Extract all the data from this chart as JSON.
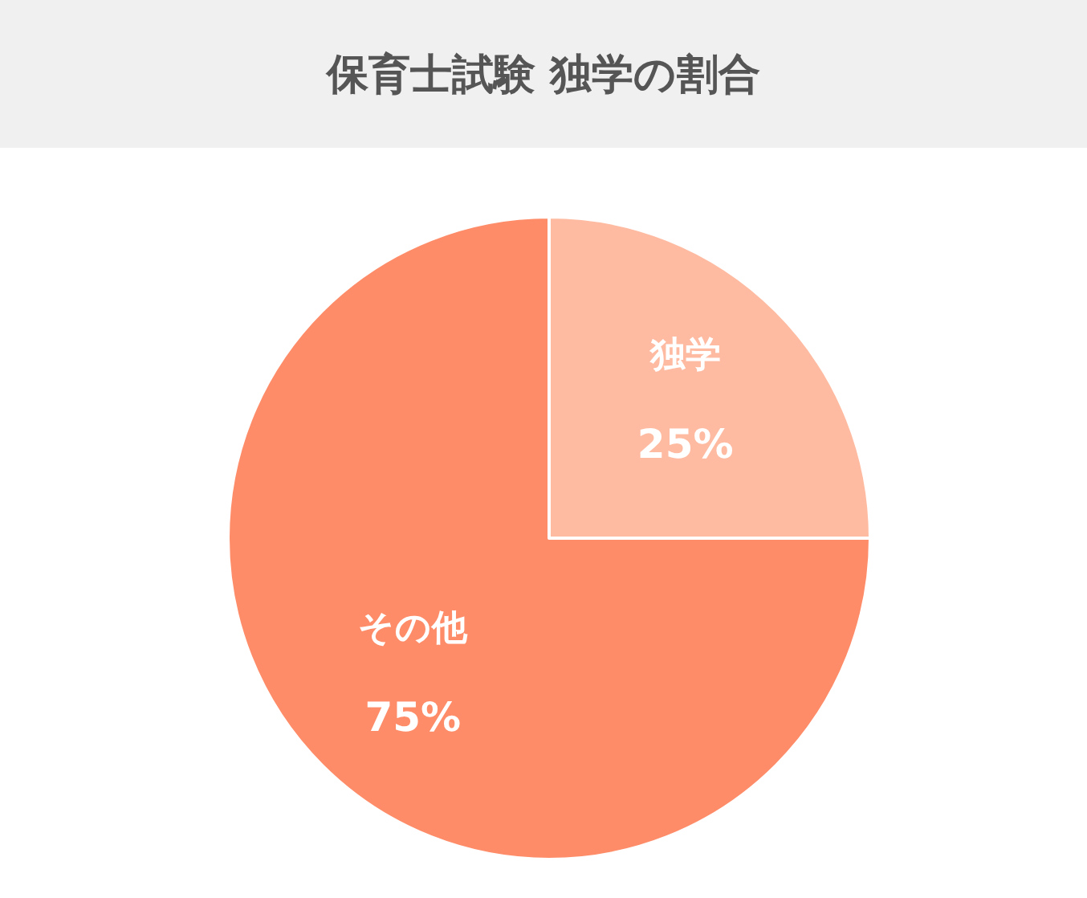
{
  "chart_data": {
    "type": "pie",
    "title": "保育士試験 独学の割合",
    "categories": [
      "独学",
      "その他"
    ],
    "values": [
      25,
      75
    ],
    "colors": [
      "#ffbba1",
      "#ff8c69"
    ],
    "value_labels": [
      "25%",
      "75%"
    ]
  }
}
